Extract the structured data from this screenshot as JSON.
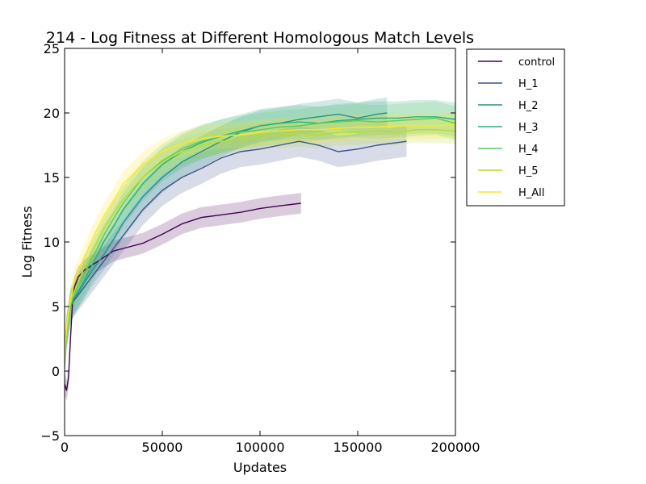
{
  "chart_data": {
    "type": "line",
    "title": "214 - Log Fitness at Different Homologous Match Levels",
    "xlabel": "Updates",
    "ylabel": "Log Fitness",
    "xlim": [
      0,
      200000
    ],
    "ylim": [
      -5,
      25
    ],
    "xticks": [
      0,
      50000,
      100000,
      150000,
      200000
    ],
    "yticks": [
      -5,
      0,
      5,
      10,
      15,
      20,
      25
    ],
    "grid": false,
    "legend_position": "outside-right-top",
    "series": [
      {
        "name": "control",
        "color": "#440154",
        "band_width": 0.8,
        "x": [
          0,
          1000,
          2000,
          3000,
          4000,
          5000,
          7000,
          10000,
          15000,
          20000,
          25000,
          30000,
          40000,
          50000,
          60000,
          70000,
          80000,
          90000,
          100000,
          110000,
          121000
        ],
        "y": [
          -1,
          -1.5,
          -0.5,
          2.5,
          5.2,
          6.5,
          7.3,
          7.8,
          8.3,
          8.8,
          9.3,
          9.5,
          9.9,
          10.6,
          11.4,
          11.9,
          12.1,
          12.3,
          12.6,
          12.8,
          13.0
        ]
      },
      {
        "name": "H_1",
        "color": "#3b528b",
        "band_width": 1.2,
        "x": [
          0,
          1000,
          3000,
          5000,
          10000,
          15000,
          20000,
          25000,
          30000,
          40000,
          50000,
          60000,
          70000,
          80000,
          90000,
          100000,
          110000,
          120000,
          130000,
          140000,
          150000,
          160000,
          170000,
          175000
        ],
        "y": [
          1,
          3,
          5,
          5.5,
          6.5,
          7.5,
          8.5,
          9.5,
          10.5,
          12.5,
          14,
          15,
          15.7,
          16.5,
          17,
          17.2,
          17.5,
          17.8,
          17.5,
          17,
          17.2,
          17.5,
          17.7,
          17.8
        ]
      },
      {
        "name": "H_2",
        "color": "#21918c",
        "band_width": 1.2,
        "x": [
          0,
          1000,
          3000,
          5000,
          10000,
          15000,
          20000,
          25000,
          30000,
          40000,
          50000,
          60000,
          70000,
          80000,
          90000,
          100000,
          110000,
          120000,
          130000,
          140000,
          150000,
          160000,
          165000
        ],
        "y": [
          1,
          3,
          5,
          5.6,
          6.8,
          8,
          9,
          10.2,
          11.5,
          13.5,
          15,
          16.2,
          17,
          17.8,
          18.5,
          19,
          19.2,
          19.5,
          19.7,
          19.9,
          19.6,
          19.9,
          20
        ]
      },
      {
        "name": "H_3",
        "color": "#28ae80",
        "band_width": 1.3,
        "x": [
          0,
          1000,
          3000,
          5000,
          10000,
          15000,
          20000,
          25000,
          30000,
          40000,
          50000,
          60000,
          70000,
          80000,
          90000,
          100000,
          110000,
          120000,
          130000,
          140000,
          150000,
          160000,
          170000,
          180000,
          190000,
          200000
        ],
        "y": [
          1,
          3,
          5,
          5.7,
          7,
          8.5,
          10,
          11.2,
          12.5,
          14.5,
          16,
          17,
          17.7,
          18.2,
          18.6,
          19,
          19.2,
          19.3,
          19.2,
          19.4,
          19.5,
          19.6,
          19.6,
          19.7,
          19.7,
          19.5
        ]
      },
      {
        "name": "H_4",
        "color": "#5ec962",
        "band_width": 1.3,
        "x": [
          0,
          1000,
          3000,
          5000,
          10000,
          15000,
          20000,
          25000,
          30000,
          40000,
          50000,
          60000,
          70000,
          80000,
          90000,
          100000,
          110000,
          120000,
          130000,
          140000,
          150000,
          160000,
          170000,
          180000,
          190000,
          200000
        ],
        "y": [
          1,
          3,
          5.2,
          6,
          7.5,
          9,
          10.5,
          11.8,
          13,
          15,
          16.3,
          17.2,
          17.8,
          18.2,
          18.5,
          18.7,
          18.9,
          19,
          19.2,
          19.3,
          19.4,
          19.3,
          19.4,
          19.5,
          19.6,
          19.2
        ]
      },
      {
        "name": "H_5",
        "color": "#b5de2b",
        "band_width": 1.0,
        "x": [
          0,
          1000,
          3000,
          5000,
          10000,
          15000,
          20000,
          25000,
          30000,
          40000,
          50000,
          60000,
          70000,
          80000,
          90000,
          100000,
          110000,
          120000,
          130000,
          140000,
          150000,
          160000,
          170000,
          180000,
          190000,
          200000
        ],
        "y": [
          1,
          3,
          5.2,
          6.2,
          8,
          9.5,
          11,
          12.2,
          13.3,
          15,
          16.2,
          17,
          17.5,
          17.8,
          18,
          18.2,
          18.3,
          18.4,
          18.3,
          18.5,
          18.5,
          18.6,
          18.5,
          18.7,
          18.7,
          18.6
        ]
      },
      {
        "name": "H_All",
        "color": "#fde725",
        "band_width": 1.0,
        "x": [
          0,
          1000,
          3000,
          5000,
          10000,
          15000,
          20000,
          25000,
          30000,
          40000,
          50000,
          60000,
          70000,
          80000,
          90000,
          100000,
          110000,
          120000,
          130000,
          140000,
          150000,
          160000,
          170000,
          180000,
          190000,
          200000
        ],
        "y": [
          1,
          3.5,
          5.5,
          7,
          8.8,
          10.5,
          12,
          13.2,
          14.5,
          16,
          17,
          17.6,
          18,
          18.2,
          18.3,
          18.5,
          18.6,
          18.7,
          18.7,
          18.8,
          18.9,
          18.9,
          19,
          19,
          19,
          19.1
        ]
      }
    ]
  }
}
